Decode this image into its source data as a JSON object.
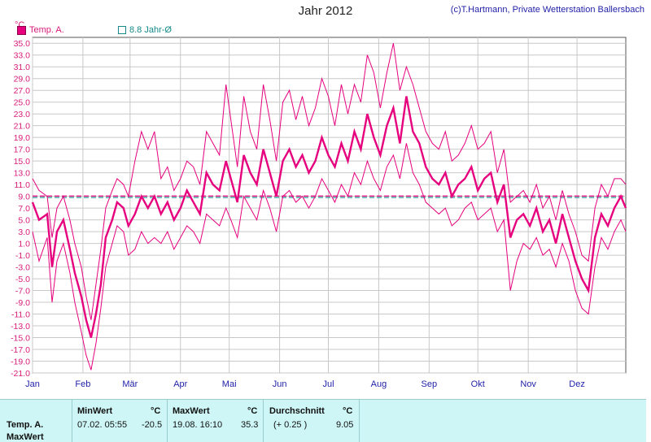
{
  "header": {
    "title": "Jahr 2012",
    "credit": "(c)T.Hartmann, Private Wetterstation Ballersbach",
    "unit": "°C",
    "legend": [
      {
        "label": "Temp. A.",
        "color": "#e6007e"
      },
      {
        "label": "8.8 Jahr-Ø",
        "color": "#178a8a"
      }
    ]
  },
  "chart_data": {
    "type": "line",
    "title": "Jahr 2012",
    "ylabel": "°C",
    "ylim": [
      -21,
      36
    ],
    "yticks": [
      35.0,
      33.0,
      31.0,
      29.0,
      27.0,
      25.0,
      23.0,
      21.0,
      19.0,
      17.0,
      15.0,
      13.0,
      11.0,
      9.0,
      7.0,
      5.0,
      3.0,
      1.0,
      -1.0,
      -3.0,
      -5.0,
      -7.0,
      -9.0,
      -11.0,
      -13.0,
      -15.0,
      -17.0,
      -19.0,
      -21.0
    ],
    "months": [
      "Jan",
      "Feb",
      "Mär",
      "Apr",
      "Mai",
      "Jun",
      "Jul",
      "Aug",
      "Sep",
      "Okt",
      "Nov",
      "Dez"
    ],
    "grid": true,
    "legend_position": "top-left",
    "reference_lines": [
      {
        "name": "8.8 Jahr-Ø",
        "value": 8.8,
        "color": "#178a8a",
        "style": "dashed"
      },
      {
        "value": 9.05,
        "color": "#e6007e",
        "style": "dashed"
      }
    ],
    "series": [
      {
        "name": "Temp. A.",
        "color": "#e6007e",
        "x_day": [
          1,
          5,
          10,
          13,
          16,
          20,
          24,
          27,
          31,
          34,
          37,
          40,
          43,
          46,
          50,
          53,
          57,
          60,
          64,
          68,
          72,
          76,
          80,
          84,
          88,
          92,
          96,
          100,
          104,
          108,
          112,
          116,
          120,
          123,
          127,
          131,
          135,
          139,
          143,
          147,
          151,
          155,
          159,
          163,
          167,
          171,
          175,
          179,
          183,
          187,
          191,
          195,
          199,
          203,
          207,
          211,
          215,
          219,
          223,
          227,
          231,
          235,
          239,
          243,
          247,
          251,
          255,
          259,
          263,
          267,
          271,
          275,
          279,
          283,
          287,
          291,
          295,
          299,
          303,
          307,
          311,
          315,
          319,
          323,
          327,
          331,
          335,
          339,
          343,
          347,
          351,
          355,
          359,
          363,
          366
        ],
        "mean": [
          8,
          5,
          6,
          -3,
          3,
          5,
          0,
          -4,
          -8,
          -12,
          -15,
          -11,
          -6,
          2,
          5,
          8,
          7,
          4,
          6,
          9,
          7,
          9,
          6,
          8,
          5,
          7,
          10,
          8,
          6,
          13,
          11,
          10,
          15,
          12,
          8,
          16,
          13,
          11,
          17,
          13,
          9,
          15,
          17,
          14,
          16,
          13,
          15,
          19,
          16,
          14,
          18,
          15,
          20,
          17,
          23,
          19,
          16,
          21,
          24,
          18,
          26,
          20,
          18,
          14,
          12,
          11,
          13,
          9,
          11,
          12,
          14,
          10,
          12,
          13,
          8,
          11,
          2,
          5,
          6,
          4,
          7,
          3,
          5,
          1,
          6,
          2,
          -2,
          -5,
          -7,
          2,
          6,
          4,
          7,
          9,
          7
        ],
        "max": [
          12,
          10,
          9,
          2,
          7,
          9,
          5,
          1,
          -3,
          -8,
          -12,
          -6,
          0,
          7,
          10,
          12,
          11,
          9,
          15,
          20,
          17,
          20,
          12,
          14,
          10,
          12,
          15,
          14,
          11,
          20,
          18,
          16,
          28,
          22,
          14,
          26,
          20,
          17,
          28,
          22,
          15,
          25,
          27,
          22,
          26,
          21,
          24,
          29,
          26,
          21,
          28,
          23,
          28,
          25,
          33,
          30,
          24,
          30,
          35,
          27,
          31,
          28,
          24,
          20,
          18,
          17,
          20,
          15,
          16,
          18,
          21,
          17,
          18,
          20,
          13,
          17,
          8,
          9,
          10,
          8,
          11,
          7,
          9,
          5,
          10,
          6,
          3,
          -1,
          -2,
          7,
          11,
          9,
          12,
          12,
          11
        ],
        "min": [
          3,
          -2,
          2,
          -9,
          -2,
          1,
          -4,
          -9,
          -14,
          -18,
          -20.5,
          -16,
          -10,
          -3,
          1,
          4,
          3,
          -1,
          0,
          3,
          1,
          2,
          1,
          3,
          0,
          2,
          4,
          3,
          1,
          6,
          5,
          4,
          7,
          5,
          2,
          9,
          7,
          5,
          10,
          7,
          3,
          9,
          10,
          8,
          9,
          7,
          9,
          12,
          10,
          8,
          11,
          9,
          13,
          11,
          15,
          12,
          10,
          14,
          16,
          12,
          18,
          13,
          11,
          8,
          7,
          6,
          7,
          4,
          5,
          7,
          8,
          5,
          6,
          7,
          3,
          5,
          -7,
          -2,
          1,
          0,
          2,
          -1,
          0,
          -3,
          1,
          -2,
          -7,
          -10,
          -11,
          -3,
          2,
          0,
          3,
          5,
          3
        ]
      }
    ]
  },
  "stats": {
    "row_label_1": "Temp. A.",
    "row_label_2": "MaxWert",
    "min_header": "MinWert",
    "min_unit": "°C",
    "min_time": "07.02.  05:55",
    "min_value": "-20.5",
    "max_header": "MaxWert",
    "max_unit": "°C",
    "max_time": "19.08.  16:10",
    "max_value": "35.3",
    "avg_header": "Durchschnitt",
    "avg_unit": "°C",
    "avg_delta": "(+ 0.25 )",
    "avg_value": "9.05"
  }
}
